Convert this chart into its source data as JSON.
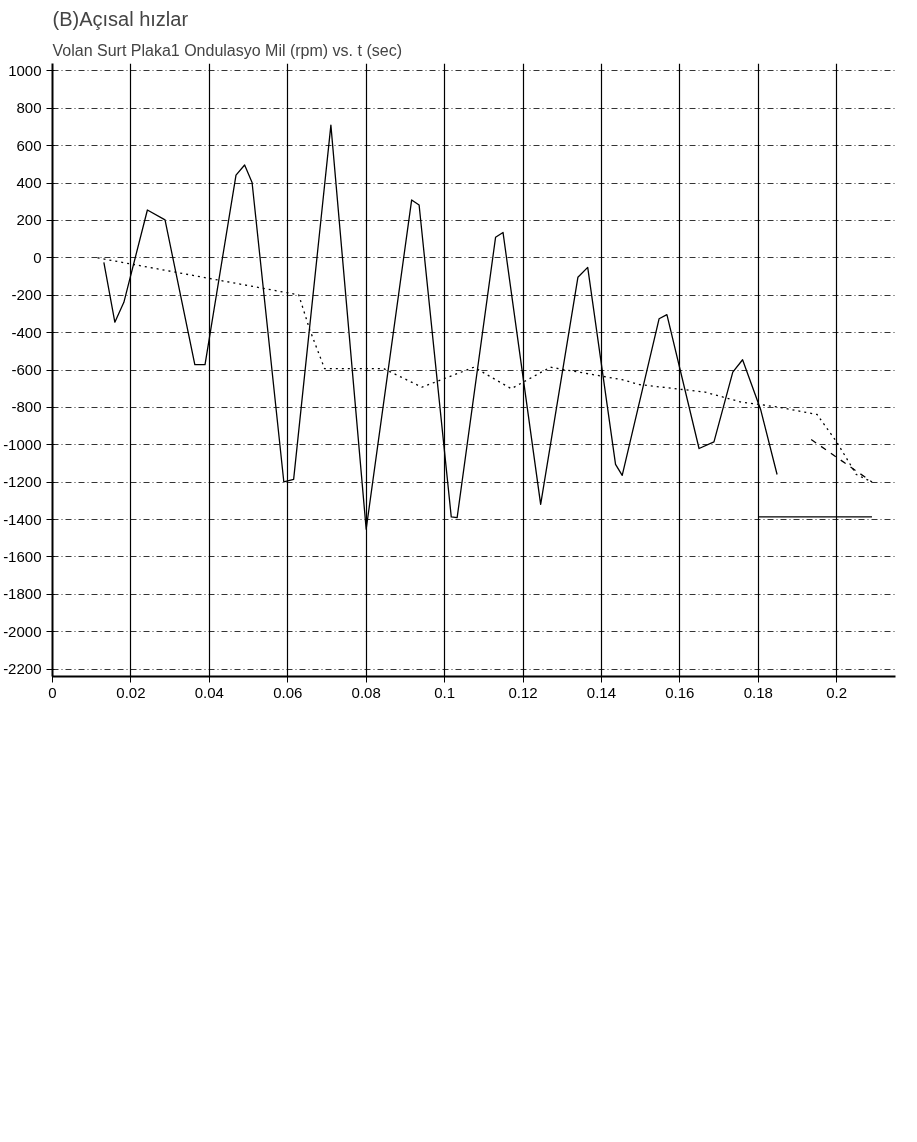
{
  "chart_data": {
    "type": "line",
    "title": "(B)Açısal hızlar",
    "subtitle": "Volan Surt Plaka1 Ondulasyo Mil (rpm) vs. t (sec)",
    "xlim": [
      0,
      0.215
    ],
    "ylim": [
      -2240,
      1040
    ],
    "xticks": [
      0,
      0.02,
      0.04,
      0.06,
      0.08,
      0.1,
      0.12,
      0.14,
      0.16,
      0.18,
      0.2
    ],
    "yticks": [
      1000,
      800,
      600,
      400,
      200,
      0,
      -200,
      -400,
      -600,
      -800,
      -1000,
      -1200,
      -1400,
      -1600,
      -1800,
      -2000,
      -2200
    ],
    "grid": true,
    "marker": "none",
    "series": [
      {
        "color": "#000000",
        "line_style": "solid",
        "x": [
          0.0131,
          0.0159,
          0.0182,
          0.0242,
          0.0287,
          0.0363,
          0.0389,
          0.0468,
          0.049,
          0.0509,
          0.059,
          0.0615,
          0.071,
          0.08,
          0.0916,
          0.0935,
          0.1017,
          0.1032,
          0.113,
          0.1149,
          0.1245,
          0.134,
          0.1365,
          0.1436,
          0.1453,
          0.1547,
          0.1567,
          0.1649,
          0.1687,
          0.1735,
          0.176,
          0.1806,
          0.1848
        ],
        "values": [
          -24,
          -344,
          -238,
          256,
          203,
          -571,
          -571,
          443,
          497,
          403,
          -1199,
          -1185,
          710,
          -1452,
          310,
          283,
          -1386,
          -1390,
          110,
          136,
          -1319,
          -104,
          -51,
          -1105,
          -1164,
          -326,
          -304,
          -1020,
          -985,
          -611,
          -545,
          -811,
          -1159
        ]
      },
      {
        "color": "#000000",
        "line_style": "dotted",
        "x": [
          0.0115,
          0.0628,
          0.0656,
          0.0694,
          0.075,
          0.0845,
          0.0942,
          0.1075,
          0.117,
          0.127,
          0.1453,
          0.1497,
          0.1664,
          0.1755,
          0.185,
          0.195,
          0.2,
          0.205,
          0.209
        ],
        "values": [
          0,
          -198,
          -384,
          -593,
          -593,
          -593,
          -692,
          -585,
          -700,
          -585,
          -652,
          -678,
          -718,
          -771,
          -798,
          -838,
          -985,
          -1159,
          -1199
        ]
      },
      {
        "color": "#000000",
        "line_style": "dashed",
        "x": [
          0.1935,
          0.209
        ],
        "values": [
          -972,
          -1199
        ]
      },
      {
        "color": "#000000",
        "line_style": "solid",
        "x": [
          0.18,
          0.209
        ],
        "values": [
          -1386,
          -1386
        ]
      }
    ]
  }
}
